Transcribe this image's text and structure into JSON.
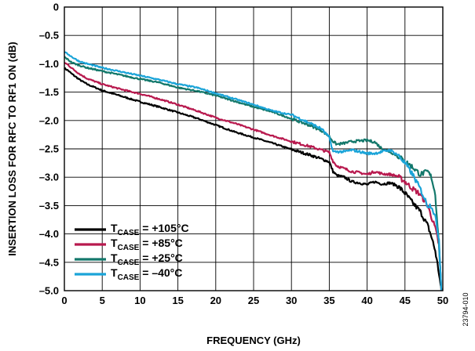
{
  "chart_data": {
    "type": "line",
    "title": "",
    "xlabel": "FREQUENCY (GHz)",
    "ylabel": "INSERTION LOSS FOR RFC TO RF1 ON (dB)",
    "xlim": [
      0,
      50
    ],
    "ylim": [
      -5.0,
      0
    ],
    "x_ticks": [
      "0",
      "5",
      "10",
      "15",
      "20",
      "25",
      "30",
      "35",
      "40",
      "45",
      "50"
    ],
    "y_ticks": [
      "0",
      "–0.5",
      "–1.0",
      "–1.5",
      "–2.0",
      "–2.5",
      "–3.0",
      "–3.5",
      "–4.0",
      "–4.5",
      "–5.0"
    ],
    "grid": true,
    "legend_position": "bottom-left",
    "figure_id": "23794-010",
    "series": [
      {
        "name": "TCASE = +105°C",
        "legend_main": "T",
        "legend_sub": "CASE",
        "legend_rest": " = +105°C",
        "color": "#000000",
        "x": [
          0,
          0.5,
          1,
          2,
          3,
          5,
          7.5,
          10,
          12.5,
          15,
          17.5,
          20,
          22.5,
          25,
          27.5,
          30,
          32.5,
          34,
          35,
          35.5,
          36,
          37,
          38,
          39,
          40,
          41,
          42,
          43,
          44,
          45,
          46,
          47,
          48,
          48.5,
          49,
          49.5,
          49.8
        ],
        "y": [
          -1.08,
          -1.12,
          -1.18,
          -1.28,
          -1.36,
          -1.47,
          -1.57,
          -1.67,
          -1.76,
          -1.86,
          -1.96,
          -2.08,
          -2.2,
          -2.3,
          -2.4,
          -2.51,
          -2.61,
          -2.68,
          -2.73,
          -2.9,
          -2.97,
          -3.0,
          -3.08,
          -3.1,
          -3.13,
          -3.08,
          -3.12,
          -3.1,
          -3.15,
          -3.28,
          -3.45,
          -3.6,
          -3.85,
          -4.05,
          -4.3,
          -4.7,
          -5.0
        ]
      },
      {
        "name": "TCASE = +85°C",
        "legend_main": "T",
        "legend_sub": "CASE",
        "legend_rest": " = +85°C",
        "color": "#b8194e",
        "x": [
          0,
          0.5,
          1,
          2,
          3,
          5,
          7.5,
          10,
          12.5,
          15,
          17.5,
          20,
          22.5,
          25,
          27.5,
          30,
          32.5,
          34,
          35,
          35.5,
          36,
          37,
          38,
          39,
          40,
          41,
          42,
          43,
          44,
          45,
          46,
          47,
          48,
          48.5,
          49,
          49.5,
          49.8
        ],
        "y": [
          -0.98,
          -1.02,
          -1.08,
          -1.18,
          -1.26,
          -1.36,
          -1.45,
          -1.53,
          -1.62,
          -1.72,
          -1.83,
          -1.95,
          -2.05,
          -2.16,
          -2.27,
          -2.37,
          -2.46,
          -2.52,
          -2.56,
          -2.72,
          -2.8,
          -2.85,
          -2.9,
          -2.92,
          -2.95,
          -2.9,
          -2.94,
          -2.95,
          -2.98,
          -3.08,
          -3.2,
          -3.3,
          -3.5,
          -3.7,
          -3.9,
          -4.2,
          -5.0
        ]
      },
      {
        "name": "TCASE = +25°C",
        "legend_main": "T",
        "legend_sub": "CASE",
        "legend_rest": " = +25°C",
        "color": "#13786b",
        "x": [
          0,
          0.5,
          1,
          2,
          3,
          5,
          7.5,
          10,
          12.5,
          15,
          17.5,
          20,
          22.5,
          25,
          27.5,
          30,
          32.5,
          34,
          35,
          35.5,
          36,
          37,
          38,
          39,
          40,
          41,
          42,
          43,
          44,
          45,
          46,
          47,
          48,
          48.5,
          49,
          49.5,
          49.8
        ],
        "y": [
          -0.88,
          -0.93,
          -0.98,
          -1.03,
          -1.07,
          -1.13,
          -1.2,
          -1.27,
          -1.33,
          -1.42,
          -1.48,
          -1.56,
          -1.66,
          -1.76,
          -1.85,
          -1.97,
          -2.09,
          -2.18,
          -2.28,
          -2.37,
          -2.42,
          -2.4,
          -2.37,
          -2.36,
          -2.35,
          -2.38,
          -2.5,
          -2.55,
          -2.62,
          -2.72,
          -2.82,
          -2.95,
          -2.9,
          -3.0,
          -3.3,
          -4.2,
          -5.0
        ]
      },
      {
        "name": "TCASE = –40°C",
        "legend_main": "T",
        "legend_sub": "CASE",
        "legend_rest": " = –40°C",
        "color": "#1ba4d8",
        "x": [
          0,
          0.5,
          1,
          2,
          3,
          5,
          7.5,
          10,
          12.5,
          15,
          17.5,
          20,
          22.5,
          25,
          27.5,
          30,
          32.5,
          34,
          35,
          35.5,
          36,
          37,
          38,
          39,
          40,
          41,
          42,
          43,
          44,
          45,
          46,
          47,
          48,
          48.5,
          49,
          49.5,
          49.8
        ],
        "y": [
          -0.8,
          -0.83,
          -0.88,
          -0.96,
          -1.0,
          -1.07,
          -1.14,
          -1.21,
          -1.28,
          -1.36,
          -1.42,
          -1.52,
          -1.62,
          -1.72,
          -1.83,
          -1.9,
          -2.05,
          -2.15,
          -2.3,
          -2.55,
          -2.55,
          -2.55,
          -2.52,
          -2.55,
          -2.58,
          -2.58,
          -2.55,
          -2.52,
          -2.6,
          -2.75,
          -2.95,
          -3.2,
          -3.5,
          -3.5,
          -3.7,
          -4.1,
          -5.0
        ]
      }
    ]
  }
}
